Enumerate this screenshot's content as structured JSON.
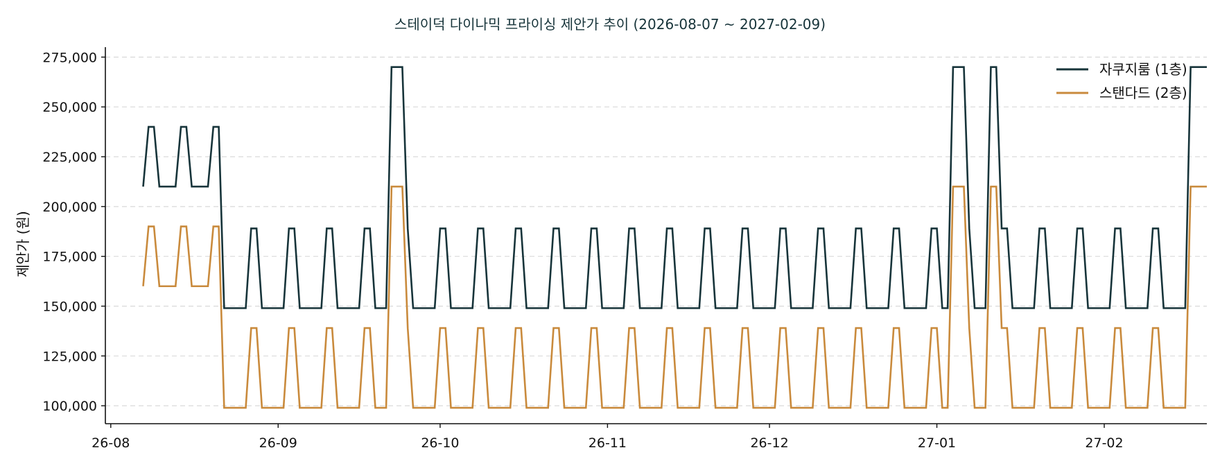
{
  "chart_data": {
    "type": "line",
    "title": "스테이덕 다이나믹 프라이싱 제안가 추이 (2026-08-07 ~ 2027-02-09)",
    "xlabel": "",
    "ylabel": "제안가 (원)",
    "x_range": [
      "2026-07-31",
      "2027-02-20"
    ],
    "ylim": [
      91000,
      280000
    ],
    "y_ticks": [
      100000,
      125000,
      150000,
      175000,
      200000,
      225000,
      250000,
      275000
    ],
    "y_tick_labels": [
      "100,000",
      "125,000",
      "150,000",
      "175,000",
      "200,000",
      "225,000",
      "250,000",
      "275,000"
    ],
    "x_ticks": [
      "2026-08-01",
      "2026-09-01",
      "2026-10-01",
      "2026-11-01",
      "2026-12-01",
      "2027-01-01",
      "2027-02-01"
    ],
    "x_tick_labels": [
      "26-08",
      "26-09",
      "26-10",
      "26-11",
      "26-12",
      "27-01",
      "27-02"
    ],
    "grid": "horizontal dashed",
    "legend_position": "top-right",
    "series": [
      {
        "name": "자쿠지룸 (1층)",
        "color": "#17343a",
        "x_start": "2026-08-07",
        "values": [
          210000,
          240000,
          240000,
          210000,
          210000,
          210000,
          210000,
          240000,
          240000,
          210000,
          210000,
          210000,
          210000,
          240000,
          240000,
          149000,
          149000,
          149000,
          149000,
          149000,
          189000,
          189000,
          149000,
          149000,
          149000,
          149000,
          149000,
          189000,
          189000,
          149000,
          149000,
          149000,
          149000,
          149000,
          189000,
          189000,
          149000,
          149000,
          149000,
          149000,
          149000,
          189000,
          189000,
          149000,
          149000,
          149000,
          270000,
          270000,
          270000,
          189000,
          149000,
          149000,
          149000,
          149000,
          149000,
          189000,
          189000,
          149000,
          149000,
          149000,
          149000,
          149000,
          189000,
          189000,
          149000,
          149000,
          149000,
          149000,
          149000,
          189000,
          189000,
          149000,
          149000,
          149000,
          149000,
          149000,
          189000,
          189000,
          149000,
          149000,
          149000,
          149000,
          149000,
          189000,
          189000,
          149000,
          149000,
          149000,
          149000,
          149000,
          189000,
          189000,
          149000,
          149000,
          149000,
          149000,
          149000,
          189000,
          189000,
          149000,
          149000,
          149000,
          149000,
          149000,
          189000,
          189000,
          149000,
          149000,
          149000,
          149000,
          149000,
          189000,
          189000,
          149000,
          149000,
          149000,
          149000,
          149000,
          189000,
          189000,
          149000,
          149000,
          149000,
          149000,
          149000,
          189000,
          189000,
          149000,
          149000,
          149000,
          149000,
          149000,
          189000,
          189000,
          149000,
          149000,
          149000,
          149000,
          149000,
          189000,
          189000,
          149000,
          149000,
          149000,
          149000,
          149000,
          189000,
          189000,
          149000,
          149000,
          270000,
          270000,
          270000,
          189000,
          149000,
          149000,
          149000,
          270000,
          270000,
          189000,
          189000,
          149000,
          149000,
          149000,
          149000,
          149000,
          189000,
          189000,
          149000,
          149000,
          149000,
          149000,
          149000,
          189000,
          189000,
          149000,
          149000,
          149000,
          149000,
          149000,
          189000,
          189000,
          149000,
          149000,
          149000,
          149000,
          149000,
          189000,
          189000,
          149000,
          149000,
          149000,
          149000,
          149000,
          270000,
          270000,
          270000,
          270000
        ]
      },
      {
        "name": "스탠다드 (2층)",
        "color": "#c98a3c",
        "x_start": "2026-08-07",
        "values": [
          160000,
          190000,
          190000,
          160000,
          160000,
          160000,
          160000,
          190000,
          190000,
          160000,
          160000,
          160000,
          160000,
          190000,
          190000,
          99000,
          99000,
          99000,
          99000,
          99000,
          139000,
          139000,
          99000,
          99000,
          99000,
          99000,
          99000,
          139000,
          139000,
          99000,
          99000,
          99000,
          99000,
          99000,
          139000,
          139000,
          99000,
          99000,
          99000,
          99000,
          99000,
          139000,
          139000,
          99000,
          99000,
          99000,
          210000,
          210000,
          210000,
          139000,
          99000,
          99000,
          99000,
          99000,
          99000,
          139000,
          139000,
          99000,
          99000,
          99000,
          99000,
          99000,
          139000,
          139000,
          99000,
          99000,
          99000,
          99000,
          99000,
          139000,
          139000,
          99000,
          99000,
          99000,
          99000,
          99000,
          139000,
          139000,
          99000,
          99000,
          99000,
          99000,
          99000,
          139000,
          139000,
          99000,
          99000,
          99000,
          99000,
          99000,
          139000,
          139000,
          99000,
          99000,
          99000,
          99000,
          99000,
          139000,
          139000,
          99000,
          99000,
          99000,
          99000,
          99000,
          139000,
          139000,
          99000,
          99000,
          99000,
          99000,
          99000,
          139000,
          139000,
          99000,
          99000,
          99000,
          99000,
          99000,
          139000,
          139000,
          99000,
          99000,
          99000,
          99000,
          99000,
          139000,
          139000,
          99000,
          99000,
          99000,
          99000,
          99000,
          139000,
          139000,
          99000,
          99000,
          99000,
          99000,
          99000,
          139000,
          139000,
          99000,
          99000,
          99000,
          99000,
          99000,
          139000,
          139000,
          99000,
          99000,
          210000,
          210000,
          210000,
          139000,
          99000,
          99000,
          99000,
          210000,
          210000,
          139000,
          139000,
          99000,
          99000,
          99000,
          99000,
          99000,
          139000,
          139000,
          99000,
          99000,
          99000,
          99000,
          99000,
          139000,
          139000,
          99000,
          99000,
          99000,
          99000,
          99000,
          139000,
          139000,
          99000,
          99000,
          99000,
          99000,
          99000,
          139000,
          139000,
          99000,
          99000,
          99000,
          99000,
          99000,
          210000,
          210000,
          210000,
          210000
        ]
      }
    ]
  }
}
